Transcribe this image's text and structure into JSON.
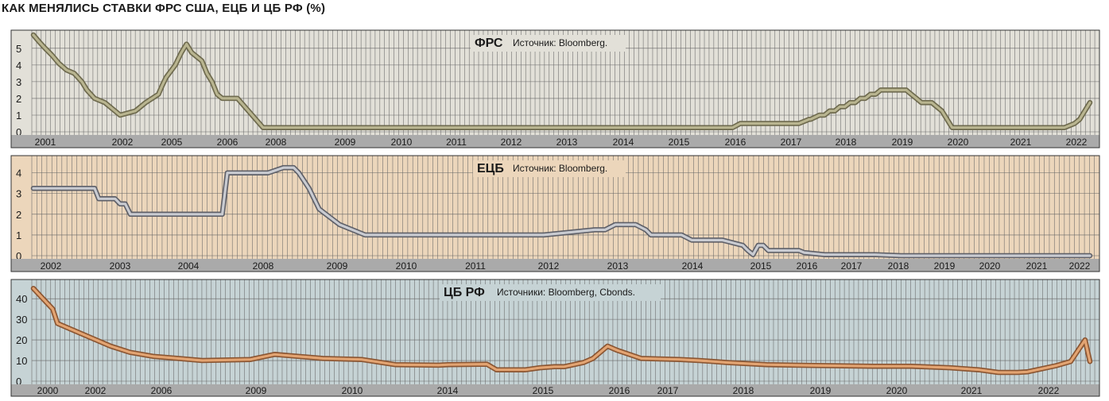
{
  "page": {
    "title": "КАК МЕНЯЛИСЬ СТАВКИ ФРС США, ЕЦБ И ЦБ РФ (%)"
  },
  "theme": {
    "grid_color": "#666666",
    "axis_bar_color": "#aaaaaa",
    "frame_color": "#333333"
  },
  "chart_data": [
    {
      "type": "line",
      "title": "ФРС",
      "source": "Источник: Bloomberg.",
      "background": "#e2e0d8",
      "line_fill": "#b9b590",
      "line_outline": "#6e6a4e",
      "ylim": [
        0,
        5.8
      ],
      "yticks": [
        "0",
        "1",
        "2",
        "3",
        "4",
        "5"
      ],
      "xtick_labels": [
        "2001",
        "2002",
        "2005",
        "2006",
        "2008",
        "2009",
        "2010",
        "2011",
        "2012",
        "2013",
        "2014",
        "2015",
        "2016",
        "2017",
        "2018",
        "2019",
        "2020",
        "2021",
        "2022"
      ],
      "series": [
        {
          "x": [
            0,
            1.1,
            2.3,
            3.6,
            5.0,
            6.5,
            8.0,
            9.5,
            10.5,
            12,
            14,
            17,
            20,
            22,
            24.5,
            25.2,
            26,
            27.8,
            29,
            30,
            31,
            32,
            33,
            34,
            35,
            36,
            37,
            38,
            38.7,
            40,
            45,
            60,
            80,
            100,
            120,
            137,
            138.5,
            150,
            152,
            152.3,
            154,
            155,
            156,
            157,
            158,
            159,
            160,
            161,
            162,
            163,
            164,
            165,
            166,
            167,
            168,
            169,
            171,
            172,
            173,
            174,
            175,
            176,
            178,
            180,
            190,
            200,
            202,
            204,
            205,
            206,
            207
          ],
          "y": [
            5.8,
            5.4,
            5.0,
            4.6,
            4.1,
            3.7,
            3.5,
            3.0,
            2.5,
            2.0,
            1.75,
            1.0,
            1.25,
            1.75,
            2.25,
            2.75,
            3.25,
            4.0,
            4.75,
            5.25,
            4.75,
            4.5,
            4.25,
            3.5,
            3.0,
            2.25,
            2.0,
            2.0,
            2.0,
            2.0,
            0.25,
            0.25,
            0.25,
            0.25,
            0.25,
            0.25,
            0.5,
            0.5,
            0.75,
            0.75,
            1.0,
            1.0,
            1.25,
            1.25,
            1.5,
            1.5,
            1.75,
            1.75,
            2.0,
            2.0,
            2.25,
            2.25,
            2.5,
            2.5,
            2.5,
            2.5,
            2.5,
            2.25,
            2.0,
            1.75,
            1.75,
            1.75,
            1.25,
            0.25,
            0.25,
            0.25,
            0.25,
            0.5,
            0.75,
            1.25,
            1.75
          ]
        }
      ]
    },
    {
      "type": "line",
      "title": "ЕЦБ",
      "source": "Источник: Bloomberg.",
      "background": "#ecd6bb",
      "line_fill": "#c9cbd1",
      "line_outline": "#5f6068",
      "ylim": [
        0,
        4.6
      ],
      "yticks": [
        "0",
        "1",
        "2",
        "3",
        "4"
      ],
      "xtick_labels": [
        "2002",
        "2003",
        "2004",
        "2008",
        "2009",
        "2010",
        "2011",
        "2012",
        "2013",
        "2014",
        "2015",
        "2016",
        "2017",
        "2018",
        "2019",
        "2020",
        "2021",
        "2022"
      ],
      "series": [
        {
          "x": [
            0,
            10,
            12,
            12.8,
            16,
            17,
            18,
            19,
            20,
            36,
            37,
            37.5,
            38,
            42,
            43,
            44,
            46,
            49,
            50,
            51,
            52,
            54,
            56,
            60,
            65,
            70,
            80,
            90,
            100,
            110,
            112,
            114,
            116,
            118,
            120,
            121,
            123,
            125,
            127,
            129,
            131,
            133,
            135,
            139,
            140,
            141,
            142,
            143,
            144,
            146,
            150,
            151,
            155,
            160,
            165,
            170,
            200,
            207
          ],
          "y": [
            3.25,
            3.25,
            3.25,
            2.75,
            2.75,
            2.5,
            2.5,
            2.0,
            2.0,
            2.0,
            2.0,
            3.0,
            4.0,
            4.0,
            4.0,
            4.0,
            4.0,
            4.25,
            4.25,
            4.25,
            4.0,
            3.25,
            2.25,
            1.5,
            1.0,
            1.0,
            1.0,
            1.0,
            1.0,
            1.25,
            1.25,
            1.5,
            1.5,
            1.5,
            1.25,
            1.0,
            1.0,
            1.0,
            1.0,
            0.75,
            0.75,
            0.75,
            0.75,
            0.5,
            0.25,
            0.05,
            0.5,
            0.5,
            0.25,
            0.25,
            0.25,
            0.15,
            0.05,
            0.05,
            0.05,
            0.0,
            0.0,
            0.0
          ]
        }
      ]
    },
    {
      "type": "line",
      "title": "ЦБ РФ",
      "source": "Источники: Bloomberg, Cbonds.",
      "background": "#c6d3d5",
      "line_fill": "#e3a472",
      "line_outline": "#8a5532",
      "ylim": [
        0,
        47
      ],
      "yticks": [
        "0",
        "10",
        "20",
        "30",
        "40"
      ],
      "xtick_labels": [
        "2000",
        "2002",
        "2006",
        "2009",
        "2010",
        "2014",
        "2015",
        "2016",
        "2017",
        "2018",
        "2019",
        "2020",
        "2021",
        "2022"
      ],
      "series": [
        {
          "x": [
            0,
            2,
            4,
            5,
            8,
            12,
            16,
            20,
            25,
            30,
            35,
            45,
            50,
            60,
            68,
            75,
            84,
            86,
            94,
            96,
            102,
            105,
            108,
            110,
            112,
            114,
            116,
            119,
            121,
            126,
            134,
            138,
            144,
            152,
            158,
            165,
            174,
            182,
            190,
            196,
            200,
            204,
            206,
            209,
            212,
            215,
            218,
            219
          ],
          "y": [
            45,
            40,
            35,
            28,
            25,
            21,
            17,
            14,
            12,
            11,
            10,
            10.5,
            13,
            11,
            10.5,
            8,
            7.75,
            8,
            8.25,
            5.5,
            5.5,
            6.5,
            7,
            7,
            8,
            9,
            11,
            17,
            15,
            11,
            10.5,
            10,
            9,
            8,
            7.75,
            7.5,
            7.25,
            7.25,
            6.5,
            5.5,
            4.25,
            4.25,
            4.5,
            6,
            7.5,
            9.5,
            20,
            9.5
          ]
        }
      ]
    }
  ]
}
